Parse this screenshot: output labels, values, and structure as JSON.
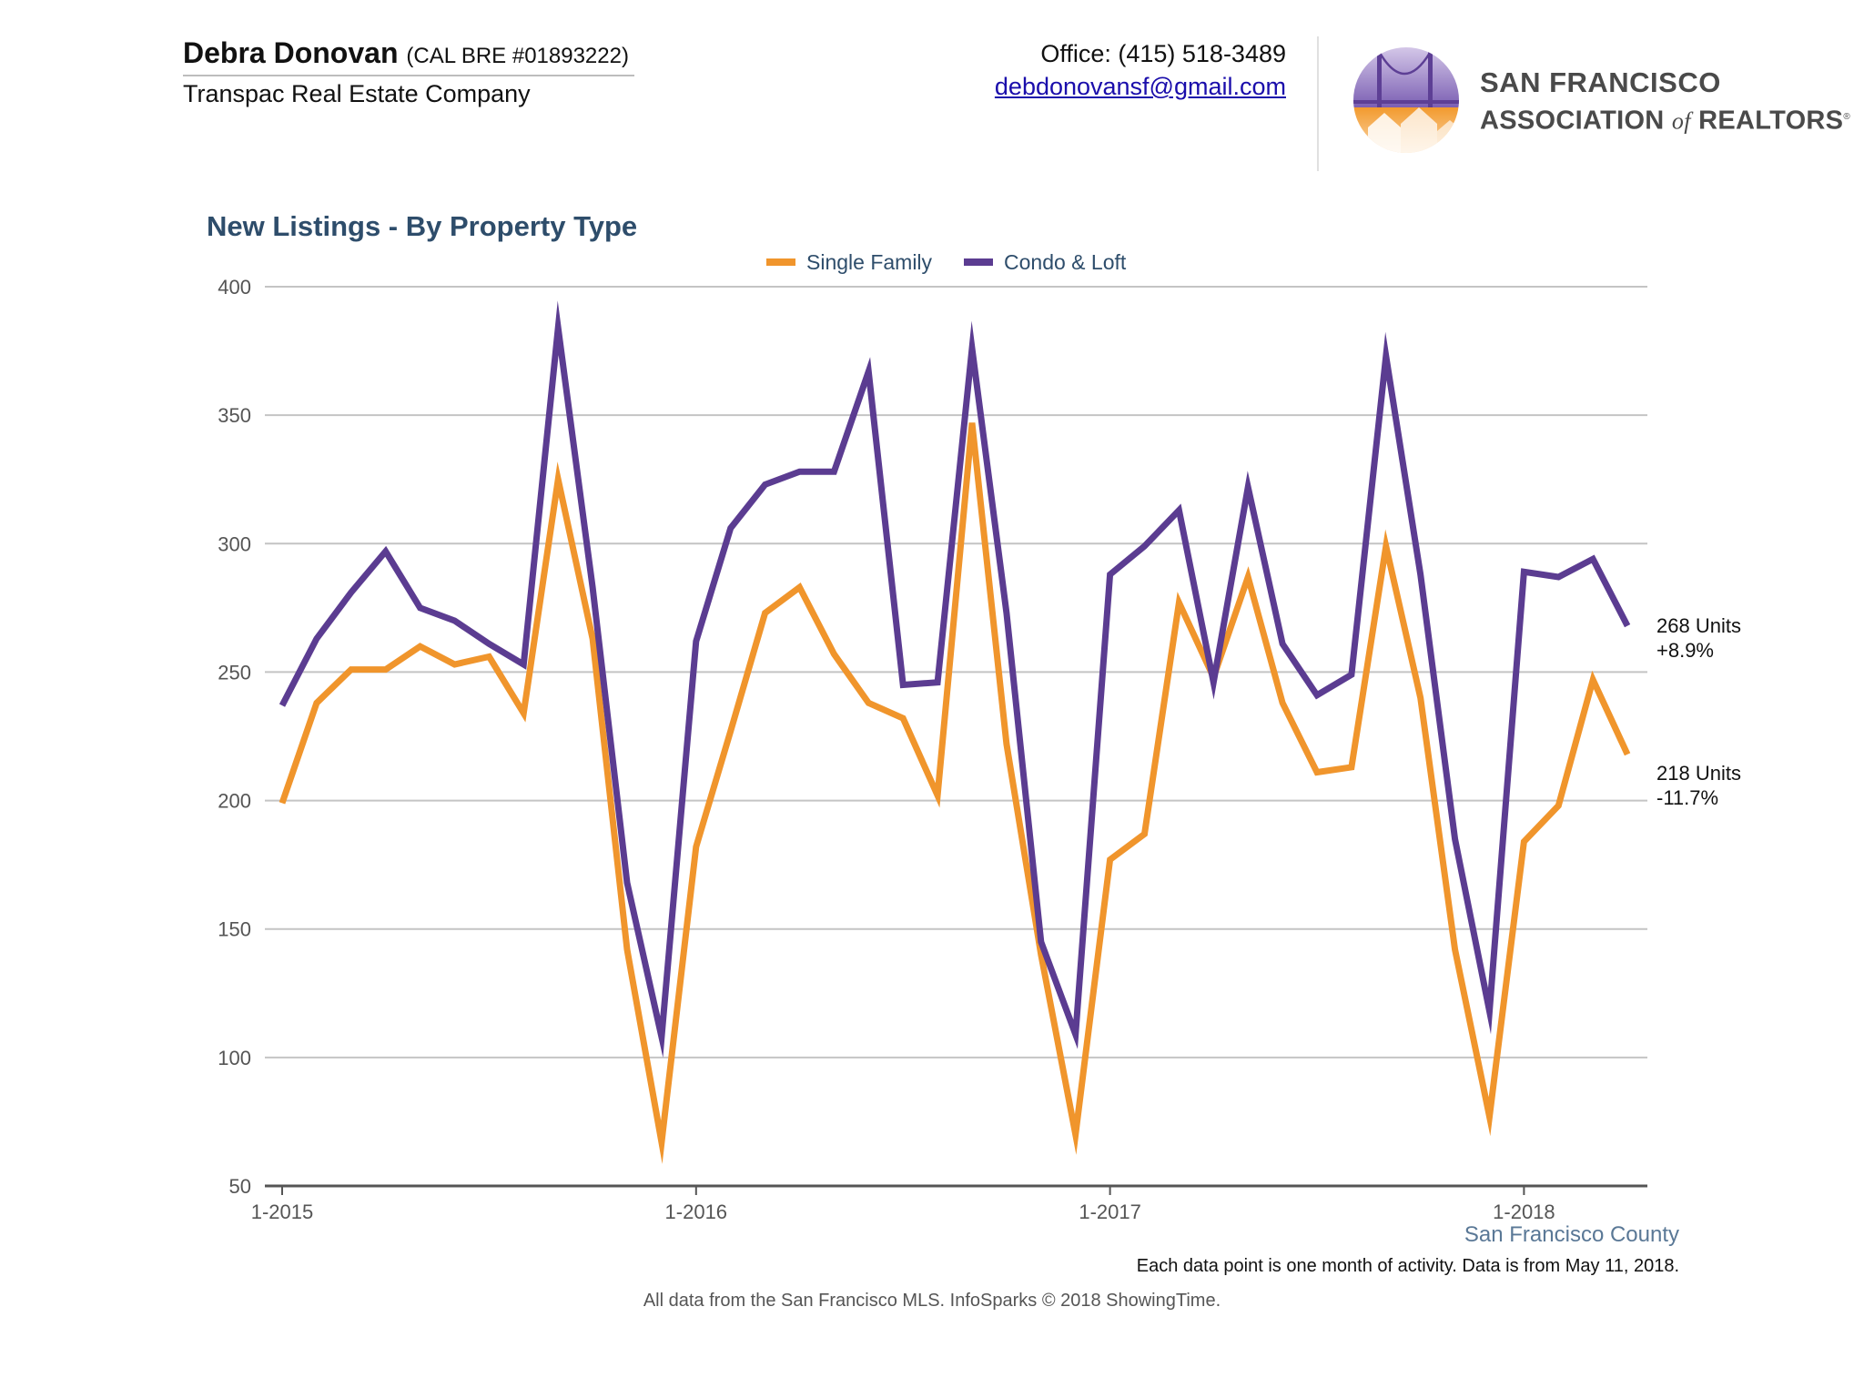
{
  "header": {
    "agent_name": "Debra Donovan",
    "agent_license": "(CAL BRE #01893222)",
    "company": "Transpac Real Estate Company",
    "office_phone": "Office: (415) 518-3489",
    "email": "debdonovansf@gmail.com",
    "logo": {
      "line1": "SAN FRANCISCO",
      "line2_prefix": "ASSOCIATION ",
      "line2_of": "of",
      "line2_suffix": " REALTORS",
      "registered": "®",
      "icon": "golden-gate-bridge-houses-icon"
    }
  },
  "chart_data": {
    "type": "line",
    "title": "New Listings - By Property Type",
    "xlabel": "",
    "ylabel": "",
    "ylim": [
      50,
      400
    ],
    "yticks": [
      50,
      100,
      150,
      200,
      250,
      300,
      350,
      400
    ],
    "x": [
      "2015-01",
      "2015-02",
      "2015-03",
      "2015-04",
      "2015-05",
      "2015-06",
      "2015-07",
      "2015-08",
      "2015-09",
      "2015-10",
      "2015-11",
      "2015-12",
      "2016-01",
      "2016-02",
      "2016-03",
      "2016-04",
      "2016-05",
      "2016-06",
      "2016-07",
      "2016-08",
      "2016-09",
      "2016-10",
      "2016-11",
      "2016-12",
      "2017-01",
      "2017-02",
      "2017-03",
      "2017-04",
      "2017-05",
      "2017-06",
      "2017-07",
      "2017-08",
      "2017-09",
      "2017-10",
      "2017-11",
      "2017-12",
      "2018-01",
      "2018-02",
      "2018-03",
      "2018-04"
    ],
    "xticks": [
      {
        "x": "2015-01",
        "label": "1-2015"
      },
      {
        "x": "2016-01",
        "label": "1-2016"
      },
      {
        "x": "2017-01",
        "label": "1-2017"
      },
      {
        "x": "2018-01",
        "label": "1-2018"
      }
    ],
    "grid": true,
    "legend_position": "top-center",
    "series": [
      {
        "name": "Single Family",
        "color": "#f0952c",
        "values": [
          199,
          238,
          251,
          251,
          260,
          253,
          256,
          234,
          325,
          263,
          142,
          67,
          182,
          227,
          273,
          283,
          257,
          238,
          232,
          202,
          347,
          222,
          140,
          70,
          177,
          187,
          277,
          248,
          287,
          238,
          211,
          213,
          299,
          240,
          142,
          77,
          184,
          198,
          247,
          218
        ],
        "end_label_value": "218 Units",
        "end_label_change": "-11.7%"
      },
      {
        "name": "Condo & Loft",
        "color": "#5b3c91",
        "values": [
          237,
          263,
          281,
          297,
          275,
          270,
          261,
          253,
          384,
          283,
          168,
          108,
          262,
          306,
          323,
          328,
          328,
          367,
          245,
          246,
          376,
          273,
          145,
          109,
          288,
          299,
          313,
          246,
          322,
          261,
          241,
          249,
          373,
          288,
          185,
          118,
          289,
          287,
          294,
          268
        ],
        "end_label_value": "268 Units",
        "end_label_change": "+8.9%"
      }
    ]
  },
  "footer": {
    "county": "San Francisco County",
    "note": "Each data point is one month of activity. Data is from May 11, 2018.",
    "source": "All data from the San Francisco MLS. InfoSparks © 2018 ShowingTime."
  }
}
